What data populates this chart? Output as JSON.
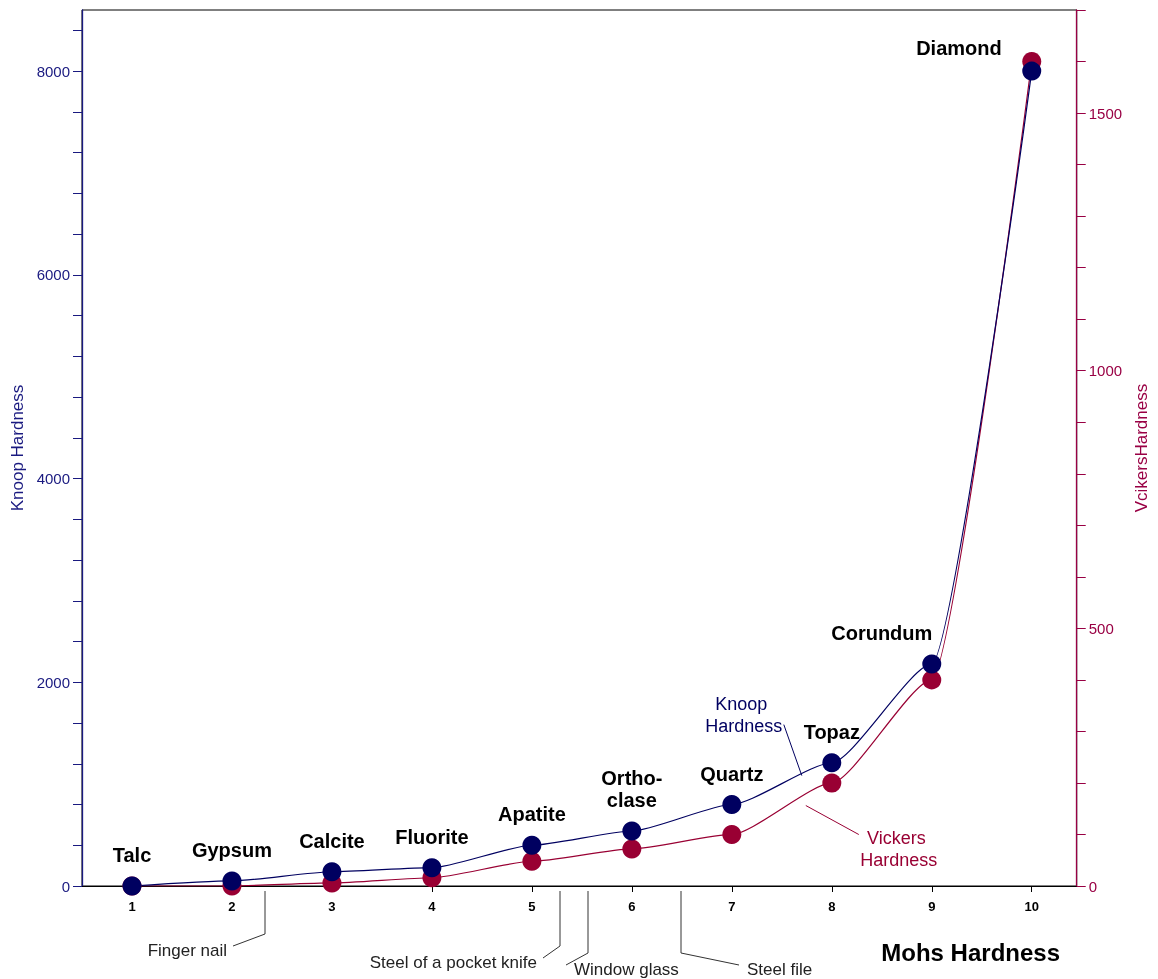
{
  "chart_data": {
    "type": "line",
    "xlabel": "Mohs Hardness",
    "ylabel": "Knoop Hardness",
    "y2label": "VcikersHardness",
    "x": [
      1,
      2,
      3,
      4,
      5,
      6,
      7,
      8,
      9,
      10
    ],
    "xlim": [
      0.5,
      10.45
    ],
    "xticks": [
      1,
      2,
      3,
      4,
      5,
      6,
      7,
      8,
      9,
      10
    ],
    "ylim": [
      0,
      8600
    ],
    "yticks": [
      0,
      {
        "value": 400,
        "label": null
      },
      {
        "value": 800,
        "label": null
      },
      {
        "value": 1200,
        "label": null
      },
      {
        "value": 1600,
        "label": null
      },
      2000,
      {
        "value": 2400,
        "label": null
      },
      {
        "value": 2800,
        "label": null
      },
      {
        "value": 3200,
        "label": null
      },
      {
        "value": 3600,
        "label": null
      },
      4000,
      {
        "value": 4400,
        "label": null
      },
      {
        "value": 4800,
        "label": null
      },
      {
        "value": 5200,
        "label": null
      },
      {
        "value": 5600,
        "label": null
      },
      6000,
      {
        "value": 6400,
        "label": null
      },
      {
        "value": 6800,
        "label": null
      },
      {
        "value": 7200,
        "label": null
      },
      {
        "value": 7600,
        "label": null
      },
      8000,
      {
        "value": 8400,
        "label": null
      }
    ],
    "y2lim": [
      0,
      1700
    ],
    "y2ticks": [
      0,
      {
        "value": 100,
        "label": null
      },
      {
        "value": 200,
        "label": null
      },
      {
        "value": 300,
        "label": null
      },
      {
        "value": 400,
        "label": null
      },
      500,
      {
        "value": 600,
        "label": null
      },
      {
        "value": 700,
        "label": null
      },
      {
        "value": 800,
        "label": null
      },
      {
        "value": 900,
        "label": null
      },
      1000,
      {
        "value": 1100,
        "label": null
      },
      {
        "value": 1200,
        "label": null
      },
      {
        "value": 1300,
        "label": null
      },
      {
        "value": 1400,
        "label": null
      },
      1500,
      {
        "value": 1600,
        "label": null
      },
      {
        "value": 1700,
        "label": null
      }
    ],
    "marker": "circle",
    "line_style": "solid",
    "series": [
      {
        "name": "Vickers Hardness",
        "color": "#990033",
        "axis": "y2",
        "values": [
          0,
          0,
          6,
          16,
          48,
          72,
          100,
          200,
          400,
          1600
        ]
      },
      {
        "name": "Knoop Hardness",
        "color": "#000060",
        "values": [
          0,
          50,
          140,
          180,
          400,
          540,
          800,
          1210,
          2180,
          8000
        ]
      }
    ],
    "annotations": [
      {
        "text": "Talc",
        "x": 1,
        "y": 0
      },
      {
        "text": "Gypsum",
        "x": 2,
        "y": 50
      },
      {
        "text": "Calcite",
        "x": 3,
        "y": 140
      },
      {
        "text": "Fluorite",
        "x": 4,
        "y": 180
      },
      {
        "text": "Apatite",
        "x": 5,
        "y": 400
      },
      {
        "text": "Ortho-\nclase",
        "x": 6,
        "y": 540
      },
      {
        "text": "Quartz",
        "x": 7,
        "y": 800
      },
      {
        "text": "Topaz",
        "x": 8,
        "y": 1210
      },
      {
        "text": "Corundum",
        "x": 9,
        "y": 2180
      },
      {
        "text": "Diamond",
        "x": 10,
        "y": 8000
      },
      "Finger nail",
      "Steel of a pocket knife",
      "Window glass",
      "Steel file"
    ]
  }
}
